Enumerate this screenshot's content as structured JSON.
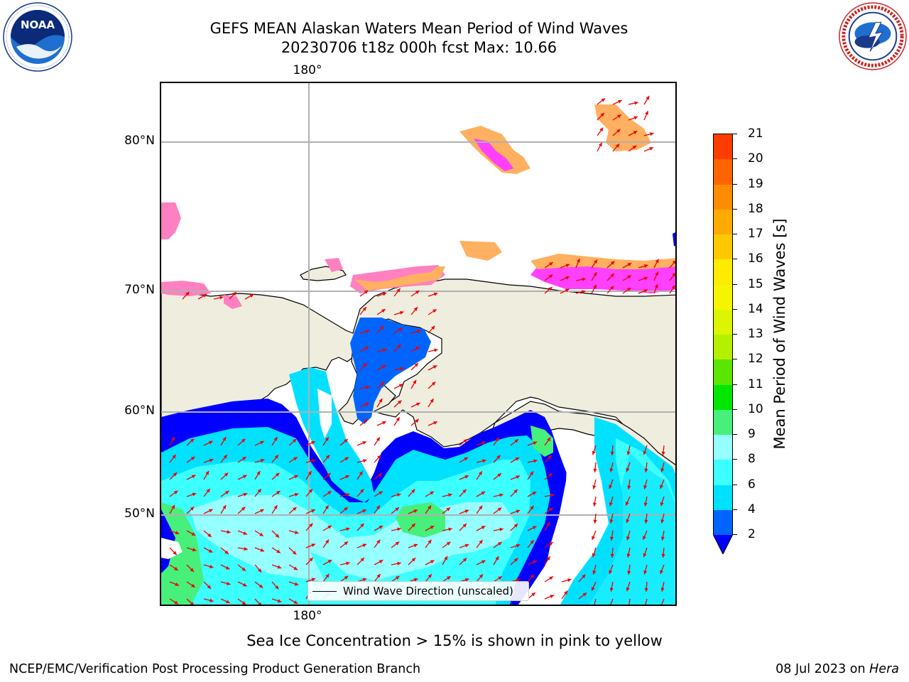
{
  "title": {
    "line1": "GEFS MEAN Alaskan Waters Mean Period of Wind Waves",
    "line2": "20230706 t18z 000h fcst   Max: 10.66"
  },
  "logos": {
    "left": {
      "name": "noaa-logo",
      "text": "NOAA",
      "ring_text": "NATIONAL OCEANIC AND ATMOSPHERIC ADMINISTRATION · U.S. DEPARTMENT OF COMMERCE"
    },
    "right": {
      "name": "nws-logo",
      "ring_text": "NATIONAL WEATHER SERVICE"
    }
  },
  "map": {
    "region": "Alaskan Waters / Bering Sea / Arctic",
    "lat_labels": [
      "80°N",
      "70°N",
      "60°N",
      "50°N"
    ],
    "lon_labels_top": [
      "180°"
    ],
    "lon_labels_bottom": [
      "180°"
    ],
    "gridlines": true,
    "colors": {
      "land": "#efedde",
      "ocean_nodata": "#ffffff",
      "grid": "#b0b0b0",
      "arrow": "#ee0000",
      "coast": "#000000"
    },
    "field_categories": [
      {
        "range": "2-4",
        "color": "#0000ff"
      },
      {
        "range": "4-6",
        "color": "#00dfff"
      },
      {
        "range": "6-8",
        "color": "#3ff5ff"
      },
      {
        "range": "8-9",
        "color": "#90fff7"
      },
      {
        "range": "9-10",
        "color": "#40f080"
      }
    ],
    "ice_colors": [
      "#ff40ff",
      "#ff80c0",
      "#ffb060",
      "#ffd040"
    ]
  },
  "legend": {
    "label": "Wind Wave Direction (unscaled)",
    "line_color": "#000000"
  },
  "colorbar": {
    "label": "Mean Period of Wind Waves [s]",
    "ticks": [
      "2",
      "4",
      "6",
      "8",
      "9",
      "10",
      "11",
      "12",
      "13",
      "14",
      "15",
      "16",
      "17",
      "18",
      "19",
      "20",
      "21"
    ],
    "colors": [
      "#0064ff",
      "#00e1ff",
      "#3cffff",
      "#96ffff",
      "#46f07a",
      "#00e600",
      "#5ae600",
      "#b4f000",
      "#dcf500",
      "#f5f500",
      "#ffeb00",
      "#ffc800",
      "#ffaa00",
      "#ff8c00",
      "#ff6400",
      "#ff3c00",
      "#ff0000"
    ],
    "extend_color": "#0000ff"
  },
  "note": "Sea Ice Concentration > 15% is shown in pink to yellow",
  "footer": {
    "left": "NCEP/EMC/Verification Post Processing Product Generation Branch",
    "right_date": "08 Jul 2023 on",
    "right_host": "Hera"
  }
}
